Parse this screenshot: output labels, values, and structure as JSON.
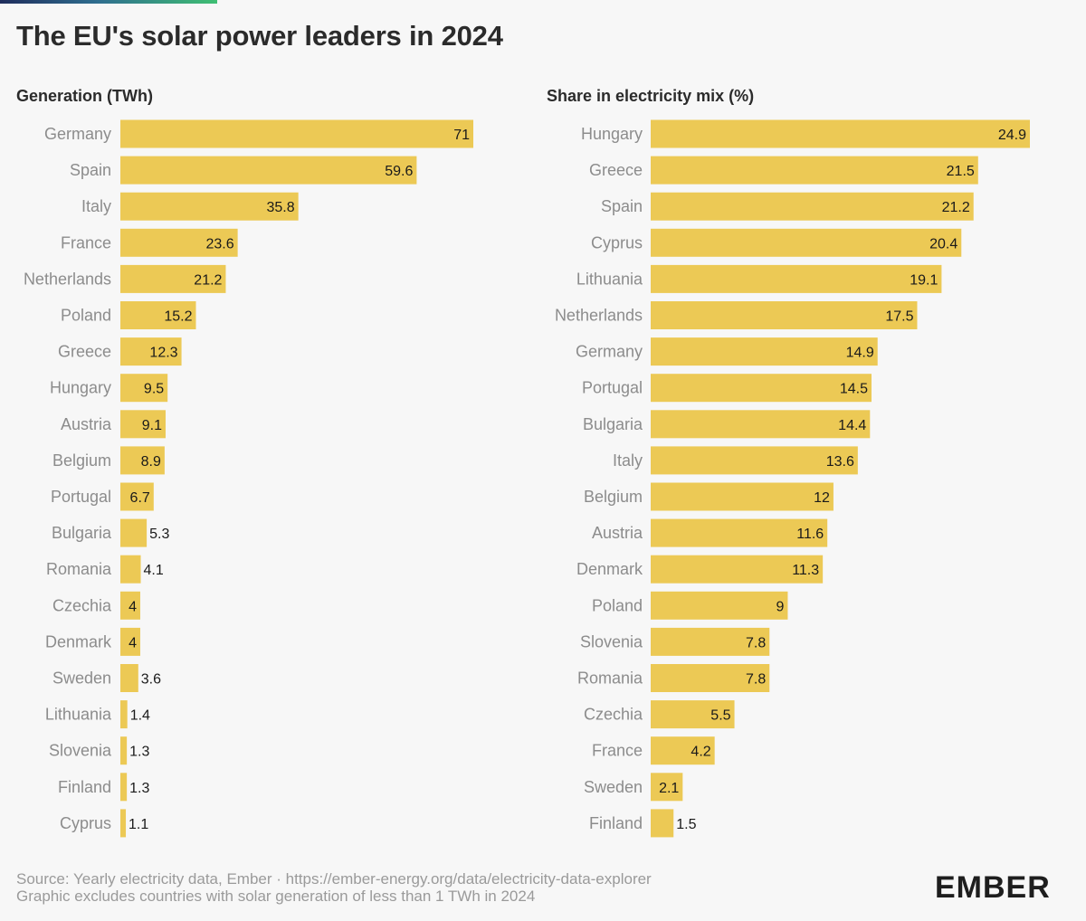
{
  "title": "The EU's solar power leaders in 2024",
  "colors": {
    "bar": "#ecc955",
    "background": "#f7f7f7",
    "brand_accent": "#3fbf73"
  },
  "chart_data": [
    {
      "type": "bar",
      "orientation": "horizontal",
      "title": "Generation (TWh)",
      "categories": [
        "Germany",
        "Spain",
        "Italy",
        "France",
        "Netherlands",
        "Poland",
        "Greece",
        "Hungary",
        "Austria",
        "Belgium",
        "Portugal",
        "Bulgaria",
        "Romania",
        "Czechia",
        "Denmark",
        "Sweden",
        "Lithuania",
        "Slovenia",
        "Finland",
        "Cyprus"
      ],
      "values": [
        71,
        59.6,
        35.8,
        23.6,
        21.2,
        15.2,
        12.3,
        9.5,
        9.1,
        8.9,
        6.7,
        5.3,
        4.1,
        4,
        4,
        3.6,
        1.4,
        1.3,
        1.3,
        1.1
      ],
      "xlim": [
        0,
        71
      ],
      "grid": false
    },
    {
      "type": "bar",
      "orientation": "horizontal",
      "title": "Share in electricity mix (%)",
      "categories": [
        "Hungary",
        "Greece",
        "Spain",
        "Cyprus",
        "Lithuania",
        "Netherlands",
        "Germany",
        "Portugal",
        "Bulgaria",
        "Italy",
        "Belgium",
        "Austria",
        "Denmark",
        "Poland",
        "Slovenia",
        "Romania",
        "Czechia",
        "France",
        "Sweden",
        "Finland"
      ],
      "values": [
        24.9,
        21.5,
        21.2,
        20.4,
        19.1,
        17.5,
        14.9,
        14.5,
        14.4,
        13.6,
        12,
        11.6,
        11.3,
        9,
        7.8,
        7.8,
        5.5,
        4.2,
        2.1,
        1.5
      ],
      "xlim": [
        0,
        24.9
      ],
      "grid": false
    }
  ],
  "footer": {
    "line1": "Source: Yearly electricity data, Ember · https://ember-energy.org/data/electricity-data-explorer",
    "line2": "Graphic excludes countries with solar generation of less than 1 TWh in 2024"
  },
  "logo": {
    "text": "EMBER"
  }
}
